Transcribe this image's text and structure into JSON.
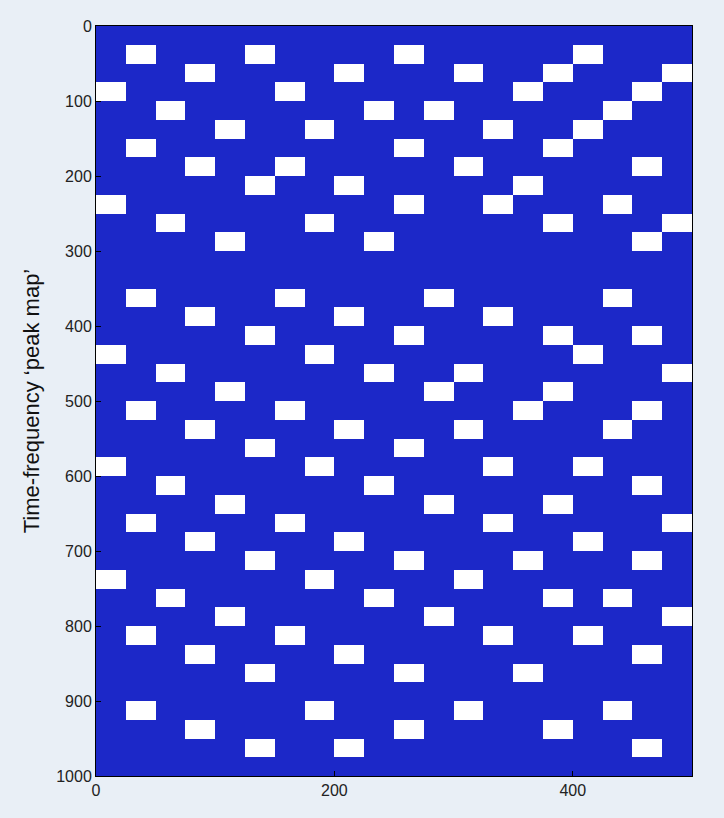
{
  "chart_data": {
    "type": "heatmap",
    "y_label": "Time-frequency ‘peak map’",
    "color": "#1c28c8",
    "xlim": [
      0,
      500
    ],
    "xticks": [
      0,
      200,
      400
    ],
    "ylim": [
      1000,
      0
    ],
    "yticks": [
      0,
      100,
      200,
      300,
      400,
      500,
      600,
      700,
      800,
      900,
      1000
    ],
    "grid": false,
    "x": [
      12.5,
      37.5,
      62.5,
      87.5,
      112.5,
      137.5,
      162.5,
      187.5,
      212.5,
      237.5,
      262.5,
      287.5,
      312.5,
      337.5,
      362.5,
      387.5,
      412.5,
      437.5,
      462.5,
      487.5
    ],
    "y": [
      12.5,
      37.5,
      62.5,
      87.5,
      112.5,
      137.5,
      162.5,
      187.5,
      212.5,
      237.5,
      262.5,
      287.5,
      312.5,
      337.5,
      362.5,
      387.5,
      412.5,
      437.5,
      462.5,
      487.5,
      512.5,
      537.5,
      562.5,
      587.5,
      612.5,
      637.5,
      662.5,
      687.5,
      712.5,
      737.5,
      762.5,
      787.5,
      812.5,
      837.5,
      862.5,
      887.5,
      912.5,
      937.5,
      962.5,
      987.5
    ],
    "cells": [
      [
        1,
        1,
        1,
        1,
        1,
        1,
        1,
        1,
        1,
        1,
        1,
        1,
        1,
        1,
        1,
        1,
        1,
        1,
        1,
        1
      ],
      [
        1,
        0,
        1,
        1,
        1,
        0,
        1,
        1,
        1,
        1,
        0,
        1,
        1,
        1,
        1,
        1,
        0,
        1,
        1,
        1
      ],
      [
        1,
        1,
        1,
        0,
        1,
        1,
        1,
        1,
        0,
        1,
        1,
        1,
        0,
        1,
        1,
        0,
        1,
        1,
        1,
        0
      ],
      [
        0,
        1,
        1,
        1,
        1,
        1,
        0,
        1,
        1,
        1,
        1,
        1,
        1,
        1,
        0,
        1,
        1,
        1,
        0,
        1
      ],
      [
        1,
        1,
        0,
        1,
        1,
        1,
        1,
        1,
        1,
        0,
        1,
        0,
        1,
        1,
        1,
        1,
        1,
        0,
        1,
        1
      ],
      [
        1,
        1,
        1,
        1,
        0,
        1,
        1,
        0,
        1,
        1,
        1,
        1,
        1,
        0,
        1,
        1,
        0,
        1,
        1,
        1
      ],
      [
        1,
        0,
        1,
        1,
        1,
        1,
        1,
        1,
        1,
        1,
        0,
        1,
        1,
        1,
        1,
        0,
        1,
        1,
        1,
        1
      ],
      [
        1,
        1,
        1,
        0,
        1,
        1,
        0,
        1,
        1,
        1,
        1,
        1,
        0,
        1,
        1,
        1,
        1,
        1,
        0,
        1
      ],
      [
        1,
        1,
        1,
        1,
        1,
        0,
        1,
        1,
        0,
        1,
        1,
        1,
        1,
        1,
        0,
        1,
        1,
        1,
        1,
        1
      ],
      [
        0,
        1,
        1,
        1,
        1,
        1,
        1,
        1,
        1,
        1,
        0,
        1,
        1,
        0,
        1,
        1,
        1,
        0,
        1,
        1
      ],
      [
        1,
        1,
        0,
        1,
        1,
        1,
        1,
        0,
        1,
        1,
        1,
        1,
        1,
        1,
        1,
        0,
        1,
        1,
        1,
        0
      ],
      [
        1,
        1,
        1,
        1,
        0,
        1,
        1,
        1,
        1,
        0,
        1,
        1,
        1,
        1,
        1,
        1,
        1,
        1,
        0,
        1
      ],
      [
        1,
        1,
        1,
        1,
        1,
        1,
        1,
        1,
        1,
        1,
        1,
        1,
        1,
        1,
        1,
        1,
        1,
        1,
        1,
        1
      ],
      [
        1,
        1,
        1,
        1,
        1,
        1,
        1,
        1,
        1,
        1,
        1,
        1,
        1,
        1,
        1,
        1,
        1,
        1,
        1,
        1
      ],
      [
        1,
        0,
        1,
        1,
        1,
        1,
        0,
        1,
        1,
        1,
        1,
        0,
        1,
        1,
        1,
        1,
        1,
        0,
        1,
        1
      ],
      [
        1,
        1,
        1,
        0,
        1,
        1,
        1,
        1,
        0,
        1,
        1,
        1,
        1,
        0,
        1,
        1,
        1,
        1,
        1,
        1
      ],
      [
        1,
        1,
        1,
        1,
        1,
        0,
        1,
        1,
        1,
        1,
        0,
        1,
        1,
        1,
        1,
        0,
        1,
        1,
        0,
        1
      ],
      [
        0,
        1,
        1,
        1,
        1,
        1,
        1,
        0,
        1,
        1,
        1,
        1,
        1,
        1,
        1,
        1,
        0,
        1,
        1,
        1
      ],
      [
        1,
        1,
        0,
        1,
        1,
        1,
        1,
        1,
        1,
        0,
        1,
        1,
        0,
        1,
        1,
        1,
        1,
        1,
        1,
        0
      ],
      [
        1,
        1,
        1,
        1,
        0,
        1,
        1,
        1,
        1,
        1,
        1,
        0,
        1,
        1,
        1,
        0,
        1,
        1,
        1,
        1
      ],
      [
        1,
        0,
        1,
        1,
        1,
        1,
        0,
        1,
        1,
        1,
        1,
        1,
        1,
        1,
        0,
        1,
        1,
        1,
        0,
        1
      ],
      [
        1,
        1,
        1,
        0,
        1,
        1,
        1,
        1,
        0,
        1,
        1,
        1,
        0,
        1,
        1,
        1,
        1,
        0,
        1,
        1
      ],
      [
        1,
        1,
        1,
        1,
        1,
        0,
        1,
        1,
        1,
        1,
        0,
        1,
        1,
        1,
        1,
        1,
        1,
        1,
        1,
        1
      ],
      [
        0,
        1,
        1,
        1,
        1,
        1,
        1,
        0,
        1,
        1,
        1,
        1,
        1,
        0,
        1,
        1,
        0,
        1,
        1,
        1
      ],
      [
        1,
        1,
        0,
        1,
        1,
        1,
        1,
        1,
        1,
        0,
        1,
        1,
        1,
        1,
        1,
        1,
        1,
        1,
        0,
        1
      ],
      [
        1,
        1,
        1,
        1,
        0,
        1,
        1,
        1,
        1,
        1,
        1,
        0,
        1,
        1,
        1,
        0,
        1,
        1,
        1,
        1
      ],
      [
        1,
        0,
        1,
        1,
        1,
        1,
        0,
        1,
        1,
        1,
        1,
        1,
        1,
        0,
        1,
        1,
        1,
        1,
        1,
        0
      ],
      [
        1,
        1,
        1,
        0,
        1,
        1,
        1,
        1,
        0,
        1,
        1,
        1,
        1,
        1,
        1,
        1,
        0,
        1,
        1,
        1
      ],
      [
        1,
        1,
        1,
        1,
        1,
        0,
        1,
        1,
        1,
        1,
        0,
        1,
        1,
        1,
        0,
        1,
        1,
        1,
        0,
        1
      ],
      [
        0,
        1,
        1,
        1,
        1,
        1,
        1,
        0,
        1,
        1,
        1,
        1,
        0,
        1,
        1,
        1,
        1,
        1,
        1,
        1
      ],
      [
        1,
        1,
        0,
        1,
        1,
        1,
        1,
        1,
        1,
        0,
        1,
        1,
        1,
        1,
        1,
        0,
        1,
        0,
        1,
        1
      ],
      [
        1,
        1,
        1,
        1,
        0,
        1,
        1,
        1,
        1,
        1,
        1,
        0,
        1,
        1,
        1,
        1,
        1,
        1,
        1,
        0
      ],
      [
        1,
        0,
        1,
        1,
        1,
        1,
        0,
        1,
        1,
        1,
        1,
        1,
        1,
        0,
        1,
        1,
        0,
        1,
        1,
        1
      ],
      [
        1,
        1,
        1,
        0,
        1,
        1,
        1,
        1,
        0,
        1,
        1,
        1,
        1,
        1,
        1,
        1,
        1,
        1,
        0,
        1
      ],
      [
        1,
        1,
        1,
        1,
        1,
        0,
        1,
        1,
        1,
        1,
        0,
        1,
        1,
        1,
        0,
        1,
        1,
        1,
        1,
        1
      ],
      [
        1,
        1,
        1,
        1,
        1,
        1,
        1,
        1,
        1,
        1,
        1,
        1,
        1,
        1,
        1,
        1,
        1,
        1,
        1,
        1
      ],
      [
        1,
        0,
        1,
        1,
        1,
        1,
        1,
        0,
        1,
        1,
        1,
        1,
        0,
        1,
        1,
        1,
        1,
        0,
        1,
        1
      ],
      [
        1,
        1,
        1,
        0,
        1,
        1,
        1,
        1,
        1,
        1,
        0,
        1,
        1,
        1,
        1,
        0,
        1,
        1,
        1,
        1
      ],
      [
        1,
        1,
        1,
        1,
        1,
        0,
        1,
        1,
        0,
        1,
        1,
        1,
        1,
        1,
        1,
        1,
        1,
        1,
        0,
        1
      ],
      [
        1,
        1,
        1,
        1,
        1,
        1,
        1,
        1,
        1,
        1,
        1,
        1,
        1,
        1,
        1,
        1,
        1,
        1,
        1,
        1
      ]
    ]
  }
}
